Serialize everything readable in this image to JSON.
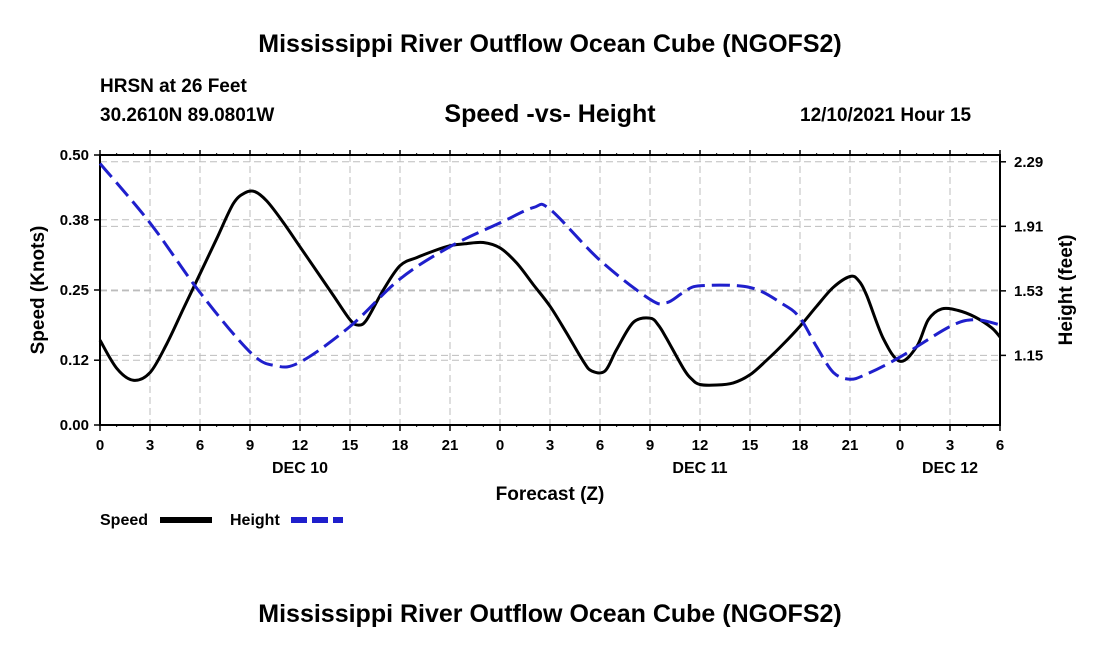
{
  "header": {
    "title": "Mississippi River Outflow Ocean Cube (NGOFS2)",
    "station": "HRSN at 26 Feet",
    "coordinates": "30.2610N  89.0801W",
    "subtitle": "Speed -vs- Height",
    "datetime": "12/10/2021 Hour 15"
  },
  "footer": {
    "title": "Mississippi River Outflow Ocean Cube (NGOFS2)"
  },
  "chart_data": {
    "type": "line",
    "title": "Speed -vs- Height",
    "xlabel": "Forecast (Z)",
    "ylabel": "Speed (Knots)",
    "y2label": "Height (feet)",
    "xlim": [
      0,
      54
    ],
    "ylim": [
      0,
      0.5
    ],
    "y2lim": [
      0.74,
      2.33
    ],
    "x_ticks": [
      0,
      3,
      6,
      9,
      12,
      15,
      18,
      21,
      24,
      27,
      30,
      33,
      36,
      39,
      42,
      45,
      48,
      51,
      54
    ],
    "x_tick_labels": [
      "0",
      "3",
      "6",
      "9",
      "12",
      "15",
      "18",
      "21",
      "0",
      "3",
      "6",
      "9",
      "12",
      "15",
      "18",
      "21",
      "0",
      "3",
      "6"
    ],
    "date_labels": [
      {
        "x": 12,
        "label": "DEC 10"
      },
      {
        "x": 36,
        "label": "DEC 11"
      },
      {
        "x": 51,
        "label": "DEC 12"
      }
    ],
    "y_ticks": [
      0,
      0.12,
      0.25,
      0.38,
      0.5
    ],
    "y_tick_labels": [
      "0.00",
      "0.12",
      "0.25",
      "0.38",
      "0.50"
    ],
    "y2_ticks": [
      1.15,
      1.53,
      1.91,
      2.29
    ],
    "y2_tick_labels": [
      "1.15",
      "1.53",
      "1.91",
      "2.29"
    ],
    "grid": true,
    "legend": [
      {
        "name": "Speed",
        "color": "#000000",
        "style": "solid"
      },
      {
        "name": "Height",
        "color": "#1f1fcc",
        "style": "dashed"
      }
    ],
    "series": [
      {
        "name": "Speed",
        "axis": "left",
        "color": "#000000",
        "style": "solid",
        "points": [
          [
            0,
            0.157
          ],
          [
            1,
            0.105
          ],
          [
            2,
            0.083
          ],
          [
            3,
            0.097
          ],
          [
            4,
            0.15
          ],
          [
            5,
            0.215
          ],
          [
            6,
            0.28
          ],
          [
            7,
            0.345
          ],
          [
            8,
            0.41
          ],
          [
            8.7,
            0.43
          ],
          [
            9.3,
            0.432
          ],
          [
            10,
            0.415
          ],
          [
            11,
            0.375
          ],
          [
            12,
            0.33
          ],
          [
            13,
            0.285
          ],
          [
            14,
            0.24
          ],
          [
            15,
            0.195
          ],
          [
            15.5,
            0.185
          ],
          [
            16,
            0.195
          ],
          [
            17,
            0.25
          ],
          [
            18,
            0.295
          ],
          [
            19,
            0.31
          ],
          [
            20,
            0.322
          ],
          [
            21,
            0.332
          ],
          [
            22,
            0.336
          ],
          [
            23,
            0.338
          ],
          [
            24,
            0.328
          ],
          [
            25,
            0.3
          ],
          [
            26,
            0.26
          ],
          [
            27,
            0.22
          ],
          [
            28,
            0.17
          ],
          [
            29,
            0.118
          ],
          [
            29.5,
            0.1
          ],
          [
            30.3,
            0.1
          ],
          [
            31,
            0.14
          ],
          [
            32,
            0.19
          ],
          [
            33,
            0.198
          ],
          [
            33.5,
            0.185
          ],
          [
            34,
            0.16
          ],
          [
            35,
            0.105
          ],
          [
            35.5,
            0.085
          ],
          [
            36,
            0.075
          ],
          [
            37,
            0.074
          ],
          [
            38,
            0.078
          ],
          [
            39,
            0.093
          ],
          [
            40,
            0.12
          ],
          [
            41,
            0.15
          ],
          [
            42,
            0.183
          ],
          [
            43,
            0.22
          ],
          [
            44,
            0.255
          ],
          [
            45,
            0.275
          ],
          [
            45.5,
            0.268
          ],
          [
            46,
            0.24
          ],
          [
            47,
            0.16
          ],
          [
            48,
            0.118
          ],
          [
            49,
            0.145
          ],
          [
            49.7,
            0.195
          ],
          [
            50.5,
            0.215
          ],
          [
            51.5,
            0.212
          ],
          [
            52.5,
            0.2
          ],
          [
            53.5,
            0.18
          ],
          [
            54,
            0.163
          ]
        ]
      },
      {
        "name": "Height",
        "axis": "right",
        "color": "#1f1fcc",
        "style": "dashed",
        "points": [
          [
            0,
            2.28
          ],
          [
            3,
            1.93
          ],
          [
            6,
            1.52
          ],
          [
            9,
            1.17
          ],
          [
            10.5,
            1.09
          ],
          [
            12,
            1.11
          ],
          [
            15,
            1.32
          ],
          [
            18,
            1.6
          ],
          [
            21,
            1.79
          ],
          [
            24,
            1.93
          ],
          [
            26,
            2.02
          ],
          [
            27,
            2.01
          ],
          [
            30,
            1.71
          ],
          [
            33,
            1.48
          ],
          [
            34,
            1.46
          ],
          [
            35,
            1.52
          ],
          [
            36,
            1.56
          ],
          [
            39,
            1.55
          ],
          [
            41,
            1.45
          ],
          [
            42,
            1.37
          ],
          [
            43,
            1.2
          ],
          [
            44,
            1.05
          ],
          [
            45,
            1.01
          ],
          [
            46,
            1.04
          ],
          [
            48,
            1.14
          ],
          [
            51,
            1.32
          ],
          [
            52.5,
            1.36
          ],
          [
            54,
            1.33
          ]
        ]
      }
    ]
  }
}
